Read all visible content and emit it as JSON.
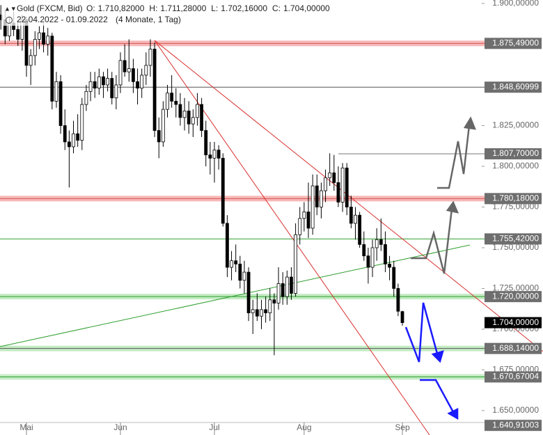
{
  "chart_data": {
    "type": "candlestick",
    "range": "22.04.2022 - 01.09.2022",
    "period": "(4 Monate, 1 Tag)",
    "header_fields": [
      {
        "prefix": "O:",
        "label": "1.710,82000"
      },
      {
        "prefix": "H:",
        "label": "1.711,28000"
      },
      {
        "prefix": "L:",
        "label": "1.702,16000"
      },
      {
        "prefix": "C:",
        "label": "1.704,00000"
      }
    ],
    "last_label": "1.704,00000",
    "up_color": "#ffffff",
    "down_color": "#000000",
    "series": [
      {
        "name": "Gold (FXCM, Bid)",
        "open": [
          1893,
          1890,
          1880,
          1888,
          1884,
          1878,
          1890,
          1862,
          1868,
          1878,
          1882,
          1875,
          1880,
          1840,
          1852,
          1825,
          1815,
          1812,
          1820,
          1816,
          1838,
          1846,
          1852,
          1848,
          1855,
          1850,
          1854,
          1842,
          1850,
          1865,
          1858,
          1860,
          1852,
          1848,
          1856,
          1862,
          1872,
          1822,
          1815,
          1835,
          1845,
          1840,
          1838,
          1830,
          1834,
          1826,
          1830,
          1838,
          1822,
          1807,
          1805,
          1810,
          1805,
          1765,
          1738,
          1742,
          1740,
          1730,
          1735,
          1710,
          1712,
          1708,
          1712,
          1710,
          1718,
          1716,
          1728,
          1720,
          1732,
          1722,
          1758,
          1768,
          1772,
          1762,
          1788,
          1775,
          1785,
          1793,
          1796,
          1790,
          1778,
          1799,
          1775,
          1765,
          1770,
          1752,
          1745,
          1738,
          1750,
          1755,
          1752,
          1740,
          1738,
          1725,
          1710.82
        ],
        "high": [
          1899,
          1896,
          1892,
          1895,
          1890,
          1893,
          1892,
          1872,
          1883,
          1886,
          1888,
          1885,
          1882,
          1858,
          1856,
          1835,
          1822,
          1828,
          1832,
          1842,
          1850,
          1858,
          1858,
          1860,
          1858,
          1860,
          1858,
          1856,
          1870,
          1875,
          1878,
          1866,
          1860,
          1860,
          1870,
          1878,
          1876,
          1830,
          1840,
          1850,
          1856,
          1848,
          1845,
          1842,
          1840,
          1835,
          1845,
          1842,
          1828,
          1815,
          1815,
          1813,
          1808,
          1770,
          1748,
          1752,
          1745,
          1742,
          1738,
          1718,
          1722,
          1718,
          1720,
          1725,
          1722,
          1738,
          1735,
          1736,
          1738,
          1765,
          1775,
          1778,
          1790,
          1795,
          1795,
          1790,
          1798,
          1808,
          1807,
          1800,
          1802,
          1802,
          1782,
          1775,
          1772,
          1760,
          1750,
          1755,
          1762,
          1768,
          1760,
          1745,
          1742,
          1728,
          1711.28
        ],
        "low": [
          1884,
          1875,
          1877,
          1880,
          1874,
          1871,
          1855,
          1850,
          1862,
          1872,
          1870,
          1868,
          1835,
          1836,
          1820,
          1810,
          1787,
          1808,
          1812,
          1810,
          1834,
          1840,
          1842,
          1844,
          1842,
          1846,
          1838,
          1835,
          1845,
          1855,
          1852,
          1845,
          1838,
          1842,
          1850,
          1855,
          1818,
          1805,
          1812,
          1830,
          1836,
          1830,
          1825,
          1822,
          1820,
          1818,
          1825,
          1818,
          1800,
          1795,
          1790,
          1798,
          1763,
          1732,
          1730,
          1735,
          1725,
          1722,
          1705,
          1697,
          1705,
          1700,
          1704,
          1705,
          1684,
          1712,
          1715,
          1715,
          1718,
          1720,
          1752,
          1760,
          1756,
          1758,
          1770,
          1768,
          1778,
          1788,
          1785,
          1775,
          1772,
          1770,
          1762,
          1755,
          1750,
          1742,
          1728,
          1732,
          1742,
          1748,
          1735,
          1730,
          1720,
          1708,
          1702.16
        ],
        "close": [
          1890,
          1880,
          1888,
          1884,
          1878,
          1890,
          1862,
          1868,
          1878,
          1882,
          1875,
          1880,
          1840,
          1852,
          1825,
          1815,
          1812,
          1820,
          1816,
          1838,
          1846,
          1852,
          1848,
          1855,
          1850,
          1854,
          1842,
          1850,
          1865,
          1858,
          1860,
          1852,
          1848,
          1856,
          1862,
          1872,
          1822,
          1815,
          1835,
          1845,
          1840,
          1838,
          1830,
          1834,
          1826,
          1830,
          1838,
          1822,
          1807,
          1805,
          1810,
          1805,
          1765,
          1738,
          1742,
          1740,
          1730,
          1735,
          1710,
          1712,
          1708,
          1712,
          1710,
          1718,
          1716,
          1728,
          1720,
          1732,
          1722,
          1758,
          1768,
          1772,
          1762,
          1788,
          1775,
          1785,
          1793,
          1796,
          1790,
          1778,
          1799,
          1775,
          1765,
          1770,
          1752,
          1745,
          1738,
          1750,
          1755,
          1752,
          1740,
          1738,
          1725,
          1711,
          1704
        ]
      }
    ],
    "xlim": [
      0,
      94
    ],
    "xticks": [
      {
        "value": 6,
        "label": "Mai"
      },
      {
        "value": 28,
        "label": "Jun"
      },
      {
        "value": 50,
        "label": "Jul"
      },
      {
        "value": 71,
        "label": "Aug"
      },
      {
        "value": 94,
        "label": "Sep"
      }
    ],
    "ylim": [
      1642.7,
      1902.14
    ],
    "yticks": [
      {
        "value": 1900,
        "label": "1.900,00000"
      },
      {
        "value": 1825,
        "label": "1.825,00000"
      },
      {
        "value": 1800,
        "label": "1.800,00000"
      },
      {
        "value": 1775,
        "label": "1.775,00000"
      },
      {
        "value": 1750,
        "label": "1.750,00000"
      },
      {
        "value": 1725,
        "label": "1.725,00000"
      },
      {
        "value": 1700,
        "label": "1.700,00000"
      },
      {
        "value": 1675,
        "label": "1.675,00000"
      },
      {
        "value": 1650,
        "label": "1.650,00000"
      }
    ],
    "levels": [
      {
        "value": 1875.49,
        "label": "1.875,49000",
        "line_color": "#d9534f",
        "band_color": "#f6b8b8"
      },
      {
        "value": 1848.60999,
        "label": "1.848,60999",
        "line_color": "#555555"
      },
      {
        "value": 1807.7,
        "label": "1.807,70000",
        "line_color": "#777777",
        "start": 79
      },
      {
        "value": 1780.18,
        "label": "1.780,18000",
        "line_color": "#d9534f",
        "band_color": "#f6b8b8"
      },
      {
        "value": 1755.42,
        "label": "1.755,42000",
        "line_color": "#2e9e2e"
      },
      {
        "value": 1720,
        "label": "1.720,00000",
        "line_color": "#2e9e2e",
        "band_color": "#c4ecc4"
      },
      {
        "value": 1688.14,
        "label": "1.688,14000",
        "line_color": "#555555",
        "band_color": "#c4ecc4"
      },
      {
        "value": 1670.67004,
        "label": "1.670,67004",
        "line_color": "#2e9e2e",
        "band_color": "#c4ecc4"
      },
      {
        "value": 1640.91003,
        "label": "1.640,91003"
      }
    ]
  }
}
